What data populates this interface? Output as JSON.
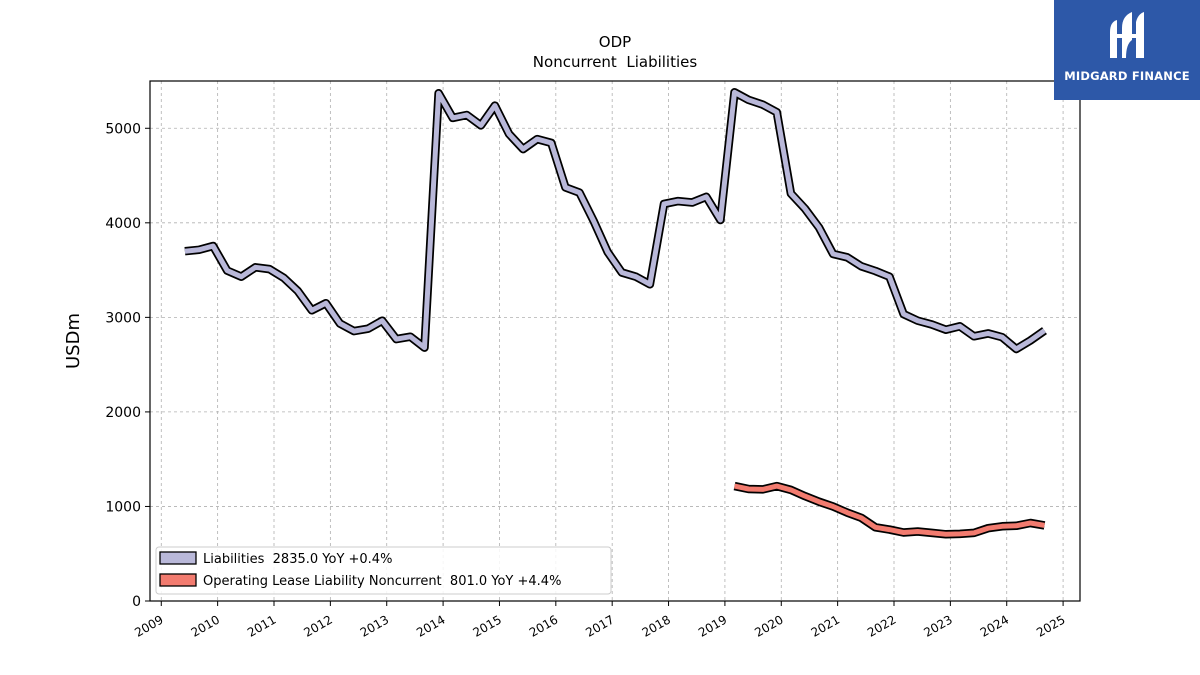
{
  "logo": {
    "text": "MIDGARD FINANCE",
    "background": "#2d58a8"
  },
  "chart_data": {
    "type": "line",
    "title": "ODP",
    "subtitle": "Noncurrent  Liabilities",
    "ylabel": "USDm",
    "xlabel": "",
    "ylim": [
      0,
      5500
    ],
    "xlim": [
      2008.8,
      2025.3
    ],
    "yticks": [
      0,
      1000,
      2000,
      3000,
      4000,
      5000
    ],
    "xticks": [
      "2009",
      "2010",
      "2011",
      "2012",
      "2013",
      "2014",
      "2015",
      "2016",
      "2017",
      "2018",
      "2019",
      "2020",
      "2021",
      "2022",
      "2023",
      "2024",
      "2025"
    ],
    "grid": true,
    "legend_position": "lower-left",
    "series": [
      {
        "name": "Liabilities  2835.0 YoY +0.4%",
        "color": "#b9b8d9",
        "x": [
          2009.42,
          2009.67,
          2009.92,
          2010.17,
          2010.42,
          2010.67,
          2010.92,
          2011.17,
          2011.42,
          2011.67,
          2011.92,
          2012.17,
          2012.42,
          2012.67,
          2012.92,
          2013.17,
          2013.42,
          2013.67,
          2013.92,
          2014.17,
          2014.42,
          2014.67,
          2014.92,
          2015.17,
          2015.42,
          2015.67,
          2015.92,
          2016.17,
          2016.42,
          2016.67,
          2016.92,
          2017.17,
          2017.42,
          2017.67,
          2017.92,
          2018.17,
          2018.42,
          2018.67,
          2018.92,
          2019.17,
          2019.42,
          2019.67,
          2019.92,
          2020.17,
          2020.42,
          2020.67,
          2020.92,
          2021.17,
          2021.42,
          2021.67,
          2021.92,
          2022.17,
          2022.42,
          2022.67,
          2022.92,
          2023.17,
          2023.42,
          2023.67,
          2023.92,
          2024.17,
          2024.42,
          2024.67
        ],
        "values": [
          3700,
          3715,
          3755,
          3495,
          3430,
          3530,
          3510,
          3420,
          3280,
          3075,
          3150,
          2935,
          2855,
          2880,
          2965,
          2770,
          2795,
          2680,
          5370,
          5110,
          5140,
          5030,
          5240,
          4940,
          4780,
          4885,
          4845,
          4375,
          4320,
          4020,
          3690,
          3475,
          3430,
          3350,
          4200,
          4230,
          4215,
          4275,
          4030,
          5380,
          5300,
          5250,
          5170,
          4310,
          4150,
          3950,
          3670,
          3635,
          3540,
          3490,
          3430,
          3035,
          2965,
          2925,
          2870,
          2905,
          2800,
          2830,
          2790,
          2665,
          2755,
          2860
        ]
      },
      {
        "name": "Operating Lease Liability Noncurrent  801.0 YoY +4.4%",
        "color": "#f27b6f",
        "x": [
          2019.17,
          2019.42,
          2019.67,
          2019.92,
          2020.17,
          2020.42,
          2020.67,
          2020.92,
          2021.17,
          2021.42,
          2021.67,
          2021.92,
          2022.17,
          2022.42,
          2022.67,
          2022.92,
          2023.17,
          2023.42,
          2023.67,
          2023.92,
          2024.17,
          2024.42,
          2024.67
        ],
        "values": [
          1215,
          1185,
          1180,
          1215,
          1175,
          1110,
          1050,
          1000,
          935,
          880,
          780,
          755,
          725,
          735,
          720,
          705,
          710,
          720,
          770,
          790,
          795,
          825,
          800
        ]
      }
    ]
  }
}
